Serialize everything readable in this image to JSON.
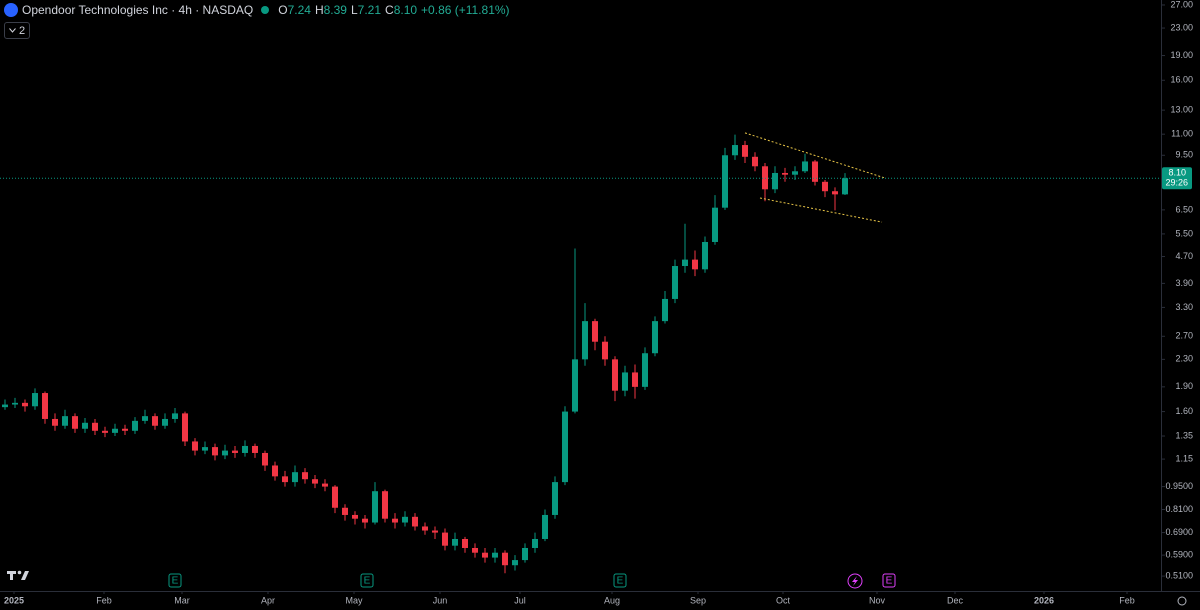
{
  "header": {
    "title": "Opendoor Technologies Inc · 4h · NASDAQ",
    "ohlc_keys": [
      "O",
      "H",
      "L",
      "C"
    ],
    "ohlc_values": [
      "7.24",
      "8.39",
      "7.21",
      "8.10"
    ],
    "change": "+0.86 (+11.81%)",
    "indicator_count": "2"
  },
  "events": [
    "E",
    "E",
    "E",
    "E"
  ],
  "chart_data": {
    "type": "candlestick",
    "log_scale": true,
    "grid": false,
    "up_color": "#089981",
    "down_color": "#f23645",
    "open": [
      1.65,
      1.68,
      1.7,
      1.66,
      1.82,
      1.52,
      1.45,
      1.55,
      1.42,
      1.48,
      1.4,
      1.38,
      1.42,
      1.4,
      1.5,
      1.55,
      1.45,
      1.52,
      1.58,
      1.3,
      1.22,
      1.25,
      1.18,
      1.22,
      1.2,
      1.26,
      1.2,
      1.1,
      1.02,
      0.98,
      1.05,
      1.0,
      0.97,
      0.95,
      0.82,
      0.78,
      0.76,
      0.74,
      0.92,
      0.76,
      0.74,
      0.77,
      0.72,
      0.7,
      0.69,
      0.63,
      0.66,
      0.62,
      0.6,
      0.58,
      0.6,
      0.55,
      0.57,
      0.62,
      0.66,
      0.78,
      0.98,
      1.6,
      2.3,
      3.0,
      2.6,
      2.3,
      1.85,
      2.1,
      1.9,
      2.4,
      3.0,
      3.5,
      4.4,
      4.6,
      4.3,
      5.2,
      6.6,
      9.5,
      10.2,
      9.4,
      8.8,
      7.5,
      8.4,
      8.3,
      8.5,
      9.1,
      7.9,
      7.4,
      7.24
    ],
    "high": [
      1.74,
      1.76,
      1.74,
      1.88,
      1.84,
      1.58,
      1.62,
      1.58,
      1.53,
      1.52,
      1.44,
      1.47,
      1.46,
      1.54,
      1.62,
      1.58,
      1.58,
      1.64,
      1.6,
      1.33,
      1.3,
      1.28,
      1.27,
      1.26,
      1.31,
      1.28,
      1.22,
      1.13,
      1.06,
      1.1,
      1.08,
      1.03,
      1.0,
      0.96,
      0.84,
      0.8,
      0.78,
      0.98,
      0.93,
      0.79,
      0.8,
      0.79,
      0.74,
      0.72,
      0.71,
      0.69,
      0.67,
      0.64,
      0.62,
      0.62,
      0.61,
      0.59,
      0.64,
      0.69,
      0.81,
      1.02,
      1.66,
      4.97,
      3.4,
      3.05,
      2.7,
      2.35,
      2.2,
      2.22,
      2.5,
      3.1,
      3.7,
      4.6,
      5.9,
      4.9,
      5.4,
      7.2,
      10.0,
      10.97,
      10.5,
      9.7,
      9.0,
      8.8,
      8.7,
      8.8,
      9.6,
      9.2,
      8.0,
      7.6,
      8.39
    ],
    "low": [
      1.62,
      1.64,
      1.6,
      1.62,
      1.47,
      1.4,
      1.42,
      1.38,
      1.38,
      1.36,
      1.34,
      1.35,
      1.36,
      1.37,
      1.47,
      1.41,
      1.42,
      1.48,
      1.26,
      1.18,
      1.19,
      1.14,
      1.15,
      1.16,
      1.17,
      1.16,
      1.06,
      0.99,
      0.95,
      0.95,
      0.97,
      0.94,
      0.92,
      0.79,
      0.75,
      0.73,
      0.71,
      0.73,
      0.74,
      0.71,
      0.72,
      0.7,
      0.68,
      0.66,
      0.61,
      0.61,
      0.6,
      0.58,
      0.56,
      0.56,
      0.52,
      0.53,
      0.56,
      0.6,
      0.65,
      0.76,
      0.96,
      1.58,
      2.2,
      2.45,
      2.2,
      1.72,
      1.78,
      1.75,
      1.86,
      2.35,
      2.95,
      3.4,
      4.2,
      4.1,
      4.2,
      5.1,
      6.5,
      9.2,
      9.0,
      8.5,
      6.9,
      7.3,
      7.9,
      8.0,
      8.4,
      7.7,
      7.1,
      6.48,
      7.21
    ],
    "close": [
      1.68,
      1.7,
      1.66,
      1.82,
      1.52,
      1.45,
      1.55,
      1.42,
      1.48,
      1.4,
      1.38,
      1.42,
      1.4,
      1.5,
      1.55,
      1.45,
      1.52,
      1.58,
      1.3,
      1.22,
      1.25,
      1.18,
      1.22,
      1.2,
      1.26,
      1.2,
      1.1,
      1.02,
      0.98,
      1.05,
      1.0,
      0.97,
      0.95,
      0.82,
      0.78,
      0.76,
      0.74,
      0.92,
      0.76,
      0.74,
      0.77,
      0.72,
      0.7,
      0.69,
      0.63,
      0.66,
      0.62,
      0.6,
      0.58,
      0.6,
      0.55,
      0.57,
      0.62,
      0.66,
      0.78,
      0.98,
      1.6,
      2.3,
      3.0,
      2.6,
      2.3,
      1.85,
      2.1,
      1.9,
      2.4,
      3.0,
      3.5,
      4.4,
      4.6,
      4.3,
      5.2,
      6.6,
      9.5,
      10.2,
      9.4,
      8.8,
      7.5,
      8.4,
      8.3,
      8.5,
      9.1,
      7.9,
      7.4,
      7.24,
      8.1
    ],
    "xlim": [
      -0.5,
      115.5
    ],
    "xticks": [
      {
        "value": 0.9,
        "label": "2025"
      },
      {
        "value": 9.9,
        "label": "Feb"
      },
      {
        "value": 17.7,
        "label": "Mar"
      },
      {
        "value": 26.3,
        "label": "Apr"
      },
      {
        "value": 34.9,
        "label": "May"
      },
      {
        "value": 43.5,
        "label": "Jun"
      },
      {
        "value": 51.5,
        "label": "Jul"
      },
      {
        "value": 60.7,
        "label": "Aug"
      },
      {
        "value": 69.3,
        "label": "Sep"
      },
      {
        "value": 77.8,
        "label": "Oct"
      },
      {
        "value": 87.2,
        "label": "Nov"
      },
      {
        "value": 95,
        "label": "Dec"
      },
      {
        "value": 103.9,
        "label": "2026"
      },
      {
        "value": 112.2,
        "label": "Feb"
      }
    ],
    "ylim": [
      0.463,
      27.95
    ],
    "yticks": [
      {
        "value": 27,
        "label": "27.00"
      },
      {
        "value": 23,
        "label": "23.00"
      },
      {
        "value": 19,
        "label": "19.00"
      },
      {
        "value": 16,
        "label": "16.00"
      },
      {
        "value": 13,
        "label": "13.00"
      },
      {
        "value": 11,
        "label": "11.00"
      },
      {
        "value": 9.5,
        "label": "9.50"
      },
      {
        "value": 6.5,
        "label": "6.50"
      },
      {
        "value": 5.5,
        "label": "5.50"
      },
      {
        "value": 4.7,
        "label": "4.70"
      },
      {
        "value": 3.9,
        "label": "3.90"
      },
      {
        "value": 3.3,
        "label": "3.30"
      },
      {
        "value": 2.7,
        "label": "2.70"
      },
      {
        "value": 2.3,
        "label": "2.30"
      },
      {
        "value": 1.9,
        "label": "1.90"
      },
      {
        "value": 1.6,
        "label": "1.60"
      },
      {
        "value": 1.35,
        "label": "1.35"
      },
      {
        "value": 1.15,
        "label": "1.15"
      },
      {
        "value": 0.95,
        "label": "0.9500"
      },
      {
        "value": 0.81,
        "label": "0.8100"
      },
      {
        "value": 0.69,
        "label": "0.6900"
      },
      {
        "value": 0.59,
        "label": "0.5900"
      },
      {
        "value": 0.51,
        "label": "0.5100"
      }
    ],
    "price_label": {
      "price": "8.10",
      "countdown": "29:26"
    },
    "trendlines": [
      {
        "x": [
          74,
          88
        ],
        "y": [
          11.1,
          8.11
        ]
      },
      {
        "x": [
          75.5,
          87.7
        ],
        "y": [
          7.06,
          5.97
        ]
      }
    ]
  }
}
